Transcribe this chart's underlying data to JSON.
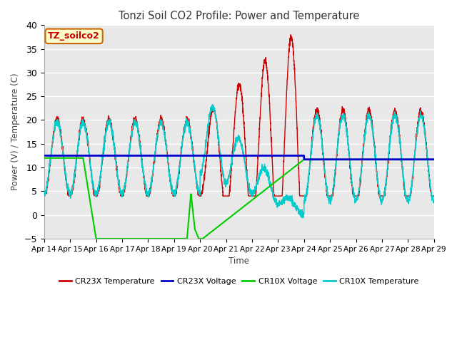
{
  "title": "Tonzi Soil CO2 Profile: Power and Temperature",
  "ylabel": "Power (V) / Temperature (C)",
  "xlabel": "Time",
  "ylim": [
    -5,
    40
  ],
  "yticks": [
    -5,
    0,
    5,
    10,
    15,
    20,
    25,
    30,
    35,
    40
  ],
  "x_tick_labels": [
    "Apr 14",
    "Apr 15",
    "Apr 16",
    "Apr 17",
    "Apr 18",
    "Apr 19",
    "Apr 20",
    "Apr 21",
    "Apr 22",
    "Apr 23",
    "Apr 24",
    "Apr 25",
    "Apr 26",
    "Apr 27",
    "Apr 28",
    "Apr 29"
  ],
  "annotation_label": "TZ_soilco2",
  "annotation_bg": "#ffffcc",
  "annotation_border": "#cc6600",
  "annotation_text_color": "#cc0000",
  "bg_color": "#ffffff",
  "plot_bg_color": "#e8e8e8",
  "grid_color": "#ffffff",
  "cr23x_temp_color": "#cc0000",
  "cr23x_volt_color": "#0000cc",
  "cr10x_volt_color": "#00cc00",
  "cr10x_temp_color": "#00cccc"
}
